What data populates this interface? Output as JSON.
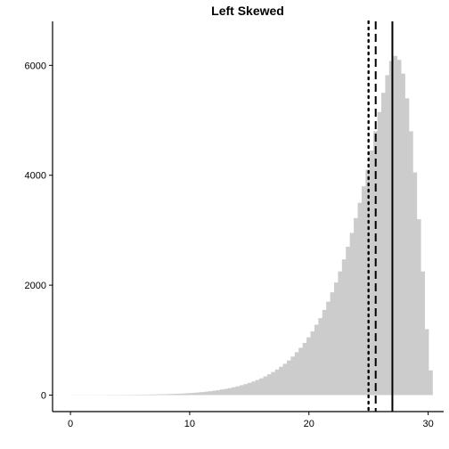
{
  "chart_data": {
    "type": "bar",
    "title": "Left Skewed",
    "xlabel": "",
    "ylabel": "",
    "xlim": [
      -1.5,
      31.3
    ],
    "ylim": [
      -300,
      6800
    ],
    "x_ticks": [
      0,
      10,
      20,
      30
    ],
    "x_tick_labels": [
      "0",
      "10",
      "20",
      "30"
    ],
    "y_ticks": [
      0,
      2000,
      4000,
      6000
    ],
    "y_tick_labels": [
      "0",
      "2000",
      "4000",
      "6000"
    ],
    "grid": false,
    "bin_width": 0.33,
    "bin_start": 0,
    "bar_color": "#cccccc",
    "values": [
      2,
      2,
      2,
      2,
      2,
      3,
      3,
      3,
      3,
      4,
      4,
      4,
      5,
      5,
      6,
      6,
      7,
      8,
      9,
      10,
      11,
      12,
      14,
      16,
      18,
      20,
      23,
      26,
      29,
      33,
      37,
      42,
      48,
      55,
      62,
      70,
      79,
      90,
      102,
      114,
      128,
      143,
      160,
      180,
      200,
      222,
      248,
      275,
      305,
      340,
      378,
      420,
      466,
      516,
      570,
      630,
      700,
      780,
      860,
      950,
      1050,
      1160,
      1280,
      1400,
      1550,
      1700,
      1870,
      2050,
      2250,
      2470,
      2700,
      2950,
      3220,
      3500,
      3800,
      4100,
      4450,
      4800,
      5150,
      5500,
      5820,
      6080,
      6170,
      6100,
      5850,
      5400,
      4800,
      4050,
      3200,
      2250,
      1200,
      450
    ],
    "vlines": [
      {
        "x": 25.0,
        "style": "dotted"
      },
      {
        "x": 25.6,
        "style": "dashed"
      },
      {
        "x": 27.0,
        "style": "solid"
      }
    ]
  }
}
